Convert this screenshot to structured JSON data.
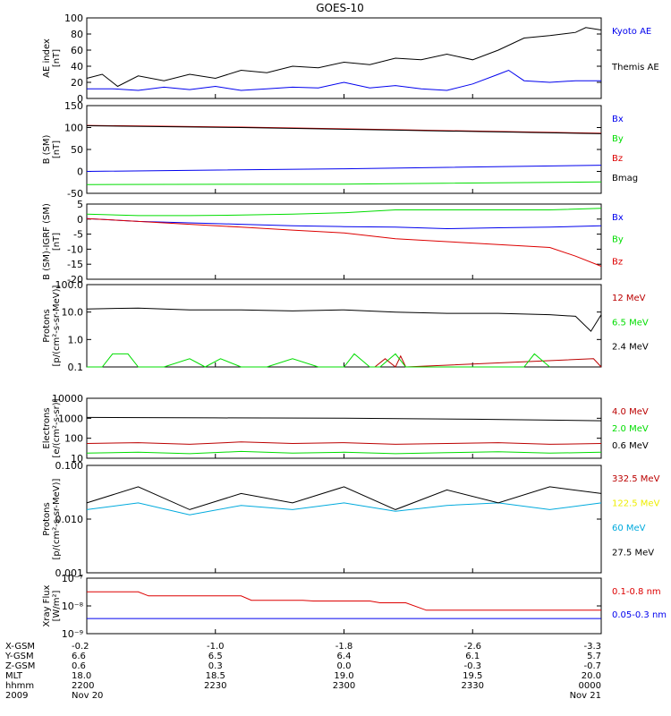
{
  "title": "GOES-10",
  "colors": {
    "black": "#000000",
    "blue": "#0000ee",
    "green": "#00dd00",
    "red": "#dd0000",
    "darkred": "#bb0000",
    "yellow": "#eeee00",
    "cyan": "#00aadd"
  },
  "chart_data": [
    {
      "type": "line",
      "ylabel": [
        "AE index",
        "[nT]"
      ],
      "ylim": [
        0,
        100
      ],
      "yticks": [
        "100",
        "80",
        "60",
        "40",
        "20",
        "0"
      ],
      "series": [
        {
          "name": "Kyoto AE",
          "color": "#0000ee",
          "x": [
            0,
            0.05,
            0.1,
            0.15,
            0.2,
            0.25,
            0.3,
            0.35,
            0.4,
            0.45,
            0.5,
            0.55,
            0.6,
            0.65,
            0.7,
            0.75,
            0.8,
            0.82,
            0.85,
            0.9,
            0.95,
            1
          ],
          "y": [
            12,
            12,
            10,
            14,
            11,
            15,
            10,
            12,
            14,
            13,
            20,
            13,
            16,
            12,
            10,
            18,
            30,
            35,
            22,
            20,
            22,
            22
          ]
        },
        {
          "name": "Themis AE",
          "color": "#000000",
          "x": [
            0,
            0.03,
            0.06,
            0.1,
            0.15,
            0.2,
            0.25,
            0.3,
            0.35,
            0.4,
            0.45,
            0.5,
            0.55,
            0.6,
            0.65,
            0.7,
            0.75,
            0.8,
            0.85,
            0.9,
            0.95,
            0.97,
            1
          ],
          "y": [
            25,
            30,
            15,
            28,
            22,
            30,
            25,
            35,
            32,
            40,
            38,
            45,
            42,
            50,
            48,
            55,
            48,
            60,
            75,
            78,
            82,
            88,
            85
          ]
        }
      ]
    },
    {
      "type": "line",
      "ylabel": [
        "B (SM)",
        "[nT]"
      ],
      "ylim": [
        -50,
        150
      ],
      "yticks": [
        "150",
        "100",
        "50",
        "0",
        "-50"
      ],
      "series": [
        {
          "name": "Bx",
          "color": "#0000ee",
          "x": [
            0,
            0.5,
            1
          ],
          "y": [
            0,
            6,
            14
          ]
        },
        {
          "name": "By",
          "color": "#00dd00",
          "x": [
            0,
            0.5,
            1
          ],
          "y": [
            -30,
            -29,
            -24
          ]
        },
        {
          "name": "Bz",
          "color": "#dd0000",
          "x": [
            0,
            0.3,
            0.6,
            1
          ],
          "y": [
            105,
            101,
            95,
            87
          ]
        },
        {
          "name": "Bmag",
          "color": "#000000",
          "x": [
            0,
            0.3,
            0.6,
            1
          ],
          "y": [
            104,
            100,
            94,
            86
          ]
        }
      ]
    },
    {
      "type": "line",
      "ylabel": [
        "B (SM)-IGRF (SM)",
        "[nT]"
      ],
      "ylim": [
        -21,
        5
      ],
      "yticks": [
        "5",
        "0",
        "-5",
        "-10",
        "-15",
        "-20"
      ],
      "series": [
        {
          "name": "Bx",
          "color": "#0000ee",
          "x": [
            0,
            0.1,
            0.2,
            0.3,
            0.4,
            0.5,
            0.6,
            0.7,
            0.8,
            0.9,
            1
          ],
          "y": [
            0,
            -1,
            -1.5,
            -2,
            -2.5,
            -2.8,
            -3,
            -3.5,
            -3.2,
            -3,
            -2.5
          ]
        },
        {
          "name": "By",
          "color": "#00dd00",
          "x": [
            0,
            0.1,
            0.2,
            0.3,
            0.4,
            0.5,
            0.6,
            0.7,
            0.8,
            0.9,
            1
          ],
          "y": [
            1.5,
            1,
            1,
            1.2,
            1.5,
            2,
            3,
            3,
            3,
            3,
            3.5
          ]
        },
        {
          "name": "Bz",
          "color": "#dd0000",
          "x": [
            0,
            0.1,
            0.2,
            0.3,
            0.4,
            0.5,
            0.6,
            0.7,
            0.8,
            0.9,
            0.95,
            1
          ],
          "y": [
            0,
            -1,
            -2,
            -3,
            -4,
            -5,
            -7,
            -8,
            -9,
            -10,
            -13,
            -16.5
          ]
        }
      ]
    },
    {
      "type": "line",
      "log": true,
      "ylabel": [
        "Protons",
        "[p/(cm²-s-sr-MeV)]"
      ],
      "ylim": [
        0.1,
        100
      ],
      "yticks": [
        "100.0",
        "10.0",
        "1.0",
        "0.1"
      ],
      "series": [
        {
          "name": "12 MeV",
          "color": "#bb0000",
          "x": [
            0.56,
            0.58,
            0.6,
            0.61,
            0.62,
            0.985,
            1
          ],
          "y": [
            0.1,
            0.2,
            0.1,
            0.25,
            0.1,
            0.2,
            0.1
          ]
        },
        {
          "name": "6.5 MeV",
          "color": "#00dd00",
          "x": [
            0,
            0.03,
            0.05,
            0.08,
            0.1,
            0.15,
            0.2,
            0.23,
            0.26,
            0.3,
            0.35,
            0.4,
            0.45,
            0.5,
            0.52,
            0.55,
            0.57,
            0.6,
            0.62,
            0.65,
            0.85,
            0.87,
            0.9
          ],
          "y": [
            0.1,
            0.1,
            0.3,
            0.3,
            0.1,
            0.1,
            0.2,
            0.1,
            0.2,
            0.1,
            0.1,
            0.2,
            0.1,
            0.1,
            0.3,
            0.1,
            0.1,
            0.3,
            0.1,
            0.1,
            0.1,
            0.3,
            0.1
          ]
        },
        {
          "name": "2.4 MeV",
          "color": "#000000",
          "x": [
            0,
            0.1,
            0.2,
            0.3,
            0.4,
            0.5,
            0.6,
            0.7,
            0.8,
            0.9,
            0.95,
            0.98,
            1
          ],
          "y": [
            13,
            14,
            12,
            12,
            11,
            12,
            10,
            9,
            9,
            8,
            7,
            2,
            8
          ]
        }
      ]
    },
    {
      "type": "line",
      "log": true,
      "ylabel": [
        "Electrons",
        "[e/(cm²-s-sr)]"
      ],
      "ylim": [
        10,
        10000
      ],
      "yticks": [
        "10000",
        "1000",
        "100",
        "10"
      ],
      "series": [
        {
          "name": "4.0 MeV",
          "color": "#bb0000",
          "x": [
            0,
            0.1,
            0.2,
            0.3,
            0.4,
            0.5,
            0.6,
            0.7,
            0.8,
            0.9,
            1
          ],
          "y": [
            55,
            60,
            50,
            65,
            55,
            60,
            50,
            55,
            60,
            50,
            55
          ]
        },
        {
          "name": "2.0 MeV",
          "color": "#00dd00",
          "x": [
            0,
            0.1,
            0.2,
            0.3,
            0.4,
            0.5,
            0.6,
            0.7,
            0.8,
            0.9,
            1
          ],
          "y": [
            18,
            20,
            17,
            22,
            18,
            20,
            17,
            19,
            21,
            18,
            20
          ]
        },
        {
          "name": "0.6 MeV",
          "color": "#000000",
          "x": [
            0,
            0.25,
            0.5,
            0.75,
            1
          ],
          "y": [
            1100,
            1050,
            1000,
            900,
            750
          ]
        }
      ]
    },
    {
      "type": "line",
      "log": true,
      "ylabel": [
        "Protons",
        "[p/(cm²-s-sr-MeV)]"
      ],
      "ylim": [
        0.001,
        0.1
      ],
      "yticks": [
        "0.100",
        "0.010",
        "0.001"
      ],
      "series": [
        {
          "name": "332.5 MeV",
          "color": "#bb0000",
          "x": [],
          "y": []
        },
        {
          "name": "122.5 MeV",
          "color": "#eeee00",
          "x": [],
          "y": []
        },
        {
          "name": "60 MeV",
          "color": "#00aadd",
          "x": [
            0,
            0.1,
            0.2,
            0.3,
            0.4,
            0.5,
            0.6,
            0.7,
            0.8,
            0.9,
            1
          ],
          "y": [
            0.015,
            0.02,
            0.012,
            0.018,
            0.015,
            0.02,
            0.014,
            0.018,
            0.02,
            0.015,
            0.02
          ]
        },
        {
          "name": "27.5 MeV",
          "color": "#000000",
          "x": [
            0,
            0.1,
            0.2,
            0.3,
            0.4,
            0.5,
            0.6,
            0.7,
            0.8,
            0.9,
            1
          ],
          "y": [
            0.02,
            0.04,
            0.015,
            0.03,
            0.02,
            0.04,
            0.015,
            0.035,
            0.02,
            0.04,
            0.03
          ]
        }
      ]
    },
    {
      "type": "line",
      "log": true,
      "ylabel": [
        "Xray Flux",
        "[W/m²]"
      ],
      "ylim": [
        1e-09,
        1e-07
      ],
      "yticks": [
        "10⁻⁷",
        "10⁻⁸",
        "10⁻⁹"
      ],
      "series": [
        {
          "name": "0.1-0.8 nm",
          "color": "#dd0000",
          "x": [
            0,
            0.1,
            0.12,
            0.3,
            0.32,
            0.42,
            0.44,
            0.55,
            0.57,
            0.62,
            0.66,
            1
          ],
          "y": [
            3.2e-08,
            3.2e-08,
            2.3e-08,
            2.3e-08,
            1.6e-08,
            1.6e-08,
            1.5e-08,
            1.5e-08,
            1.3e-08,
            1.3e-08,
            7e-09,
            7e-09
          ]
        },
        {
          "name": "0.05-0.3 nm",
          "color": "#0000ee",
          "x": [
            0,
            1
          ],
          "y": [
            3.5e-09,
            3.5e-09
          ]
        }
      ]
    }
  ],
  "xaxis": {
    "tick_fracs": [
      0,
      0.25,
      0.5,
      0.75,
      1
    ],
    "row_labels": [
      "X-GSM",
      "Y-GSM",
      "Z-GSM",
      "MLT",
      "hhmm",
      "2009"
    ],
    "rows": [
      [
        "-0.2",
        "-1.0",
        "-1.8",
        "-2.6",
        "-3.3"
      ],
      [
        "6.6",
        "6.5",
        "6.4",
        "6.1",
        "5.7"
      ],
      [
        "0.6",
        "0.3",
        "0.0",
        "-0.3",
        "-0.7"
      ],
      [
        "18.0",
        "18.5",
        "19.0",
        "19.5",
        "20.0"
      ],
      [
        "2200",
        "2230",
        "2300",
        "2330",
        "0000"
      ],
      [
        "Nov 20",
        "",
        "",
        "",
        "Nov 21"
      ]
    ]
  }
}
